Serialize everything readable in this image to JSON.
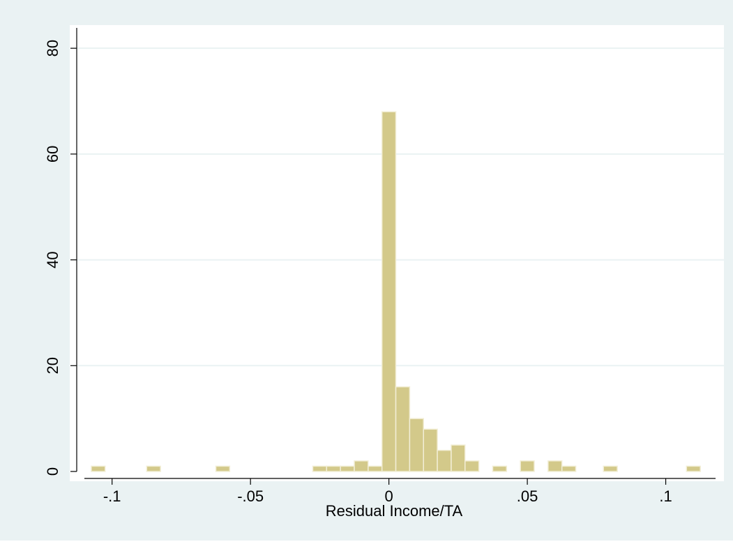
{
  "chart_data": {
    "type": "bar",
    "subtype": "histogram",
    "title": "",
    "xlabel": "Residual Income/TA",
    "ylabel": "",
    "xlim": [
      -0.11,
      0.118
    ],
    "ylim": [
      0,
      82
    ],
    "x_ticks": [
      {
        "value": -0.1,
        "label": "-.1"
      },
      {
        "value": -0.05,
        "label": "-.05"
      },
      {
        "value": 0,
        "label": "0"
      },
      {
        "value": 0.05,
        "label": ".05"
      },
      {
        "value": 0.1,
        "label": ".1"
      }
    ],
    "y_ticks": [
      {
        "value": 0,
        "label": "0"
      },
      {
        "value": 20,
        "label": "20"
      },
      {
        "value": 40,
        "label": "40"
      },
      {
        "value": 60,
        "label": "60"
      },
      {
        "value": 80,
        "label": "80"
      }
    ],
    "bin_width": 0.005,
    "bins": [
      {
        "x0": -0.1075,
        "count": 1
      },
      {
        "x0": -0.0875,
        "count": 1
      },
      {
        "x0": -0.0625,
        "count": 1
      },
      {
        "x0": -0.0275,
        "count": 1
      },
      {
        "x0": -0.0225,
        "count": 1
      },
      {
        "x0": -0.0175,
        "count": 1
      },
      {
        "x0": -0.0125,
        "count": 2
      },
      {
        "x0": -0.0075,
        "count": 1
      },
      {
        "x0": -0.0025,
        "count": 68
      },
      {
        "x0": 0.0025,
        "count": 16
      },
      {
        "x0": 0.0075,
        "count": 10
      },
      {
        "x0": 0.0125,
        "count": 8
      },
      {
        "x0": 0.0175,
        "count": 4
      },
      {
        "x0": 0.0225,
        "count": 5
      },
      {
        "x0": 0.0275,
        "count": 2
      },
      {
        "x0": 0.0375,
        "count": 1
      },
      {
        "x0": 0.0475,
        "count": 2
      },
      {
        "x0": 0.0575,
        "count": 2
      },
      {
        "x0": 0.0625,
        "count": 1
      },
      {
        "x0": 0.0775,
        "count": 1
      },
      {
        "x0": 0.1075,
        "count": 1
      }
    ],
    "grid": true,
    "legend": "none",
    "colors": {
      "outer_background": "#EAF2F3",
      "plot_background": "#FFFFFF",
      "bar_fill": "#D3C98A",
      "bar_edge": "#F2EED6",
      "grid": "#EAF2F3",
      "axis": "#000000"
    }
  }
}
